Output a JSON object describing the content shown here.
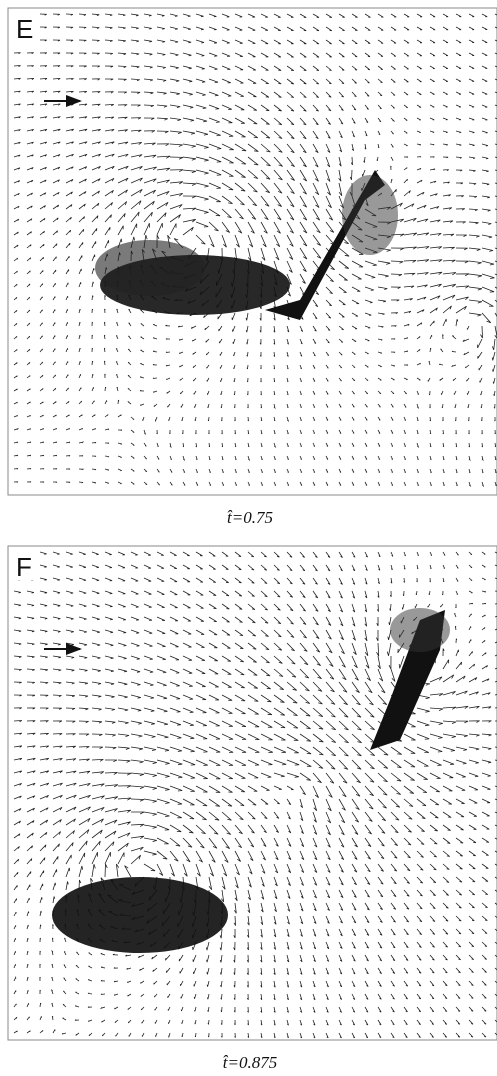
{
  "panels": [
    {
      "label": "E",
      "caption": "t̂=0.75"
    },
    {
      "label": "F",
      "caption": "t̂=0.875"
    }
  ]
}
